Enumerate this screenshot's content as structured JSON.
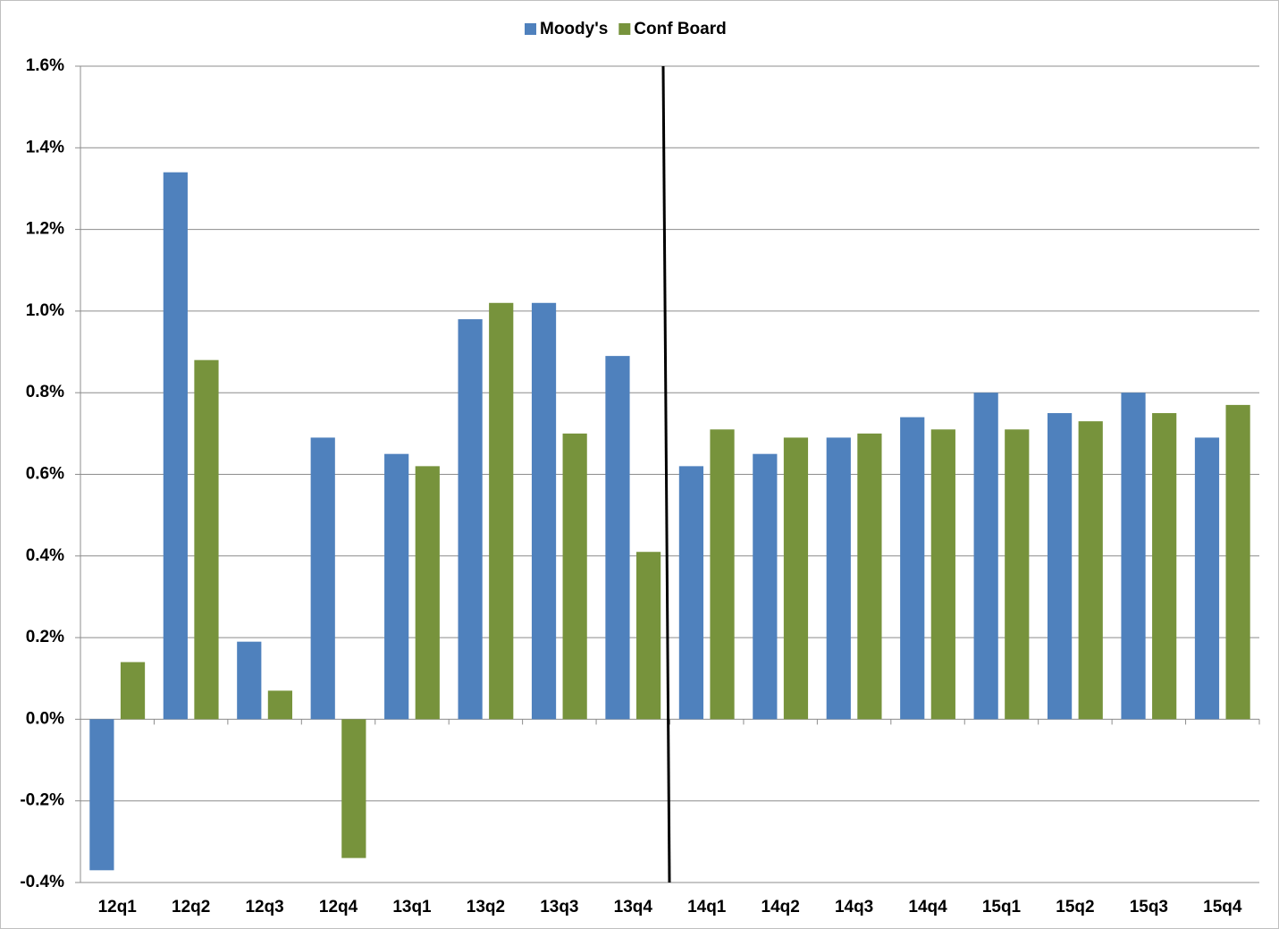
{
  "chart_data": {
    "type": "bar",
    "categories": [
      "12q1",
      "12q2",
      "12q3",
      "12q4",
      "13q1",
      "13q2",
      "13q3",
      "13q4",
      "14q1",
      "14q2",
      "14q3",
      "14q4",
      "15q1",
      "15q2",
      "15q3",
      "15q4"
    ],
    "series": [
      {
        "name": "Moody's",
        "color": "#4f81bd",
        "values": [
          -0.37,
          1.34,
          0.19,
          0.69,
          0.65,
          0.98,
          1.02,
          0.89,
          0.62,
          0.65,
          0.69,
          0.74,
          0.8,
          0.75,
          0.8,
          0.69
        ]
      },
      {
        "name": "Conf Board",
        "color": "#77933c",
        "values": [
          0.14,
          0.88,
          0.07,
          -0.34,
          0.62,
          1.02,
          0.7,
          0.41,
          0.71,
          0.69,
          0.7,
          0.71,
          0.71,
          0.73,
          0.75,
          0.77
        ]
      }
    ],
    "ylim": [
      -0.4,
      1.6
    ],
    "yticks": [
      {
        "value": -0.4,
        "label": "-0.4%"
      },
      {
        "value": -0.2,
        "label": "-0.2%"
      },
      {
        "value": 0,
        "label": "0.0%"
      },
      {
        "value": 0.2,
        "label": "0.2%"
      },
      {
        "value": 0.4,
        "label": "0.4%"
      },
      {
        "value": 0.6,
        "label": "0.6%"
      },
      {
        "value": 0.8,
        "label": "0.8%"
      },
      {
        "value": 1.0,
        "label": "1.0%"
      },
      {
        "value": 1.2,
        "label": "1.2%"
      },
      {
        "value": 1.4,
        "label": "1.4%"
      },
      {
        "value": 1.6,
        "label": "1.6%"
      }
    ],
    "grid": true,
    "legend": "top"
  }
}
